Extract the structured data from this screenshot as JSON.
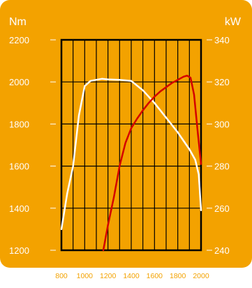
{
  "chart_data": {
    "type": "line",
    "xlabel": "",
    "x_ticks": [
      "800",
      "1000",
      "1200",
      "1400",
      "1600",
      "1800",
      "2000"
    ],
    "xlim": [
      800,
      2000
    ],
    "y_left": {
      "unit": "Nm",
      "ticks": [
        "1200",
        "1400",
        "1600",
        "1800",
        "2000",
        "2200"
      ],
      "ylim": [
        1200,
        2200
      ]
    },
    "y_right": {
      "unit": "kW",
      "ticks": [
        "240",
        "260",
        "280",
        "300",
        "320",
        "340"
      ],
      "ylim": [
        240,
        340
      ]
    },
    "grid": true,
    "series": [
      {
        "axis": "left",
        "color": "#ffffff",
        "points": [
          [
            800,
            1300
          ],
          [
            850,
            1470
          ],
          [
            900,
            1600
          ],
          [
            950,
            1840
          ],
          [
            1000,
            1980
          ],
          [
            1050,
            2005
          ],
          [
            1100,
            2010
          ],
          [
            1150,
            2015
          ],
          [
            1200,
            2012
          ],
          [
            1300,
            2010
          ],
          [
            1400,
            2005
          ],
          [
            1500,
            1960
          ],
          [
            1600,
            1900
          ],
          [
            1700,
            1830
          ],
          [
            1800,
            1760
          ],
          [
            1850,
            1720
          ],
          [
            1900,
            1680
          ],
          [
            1950,
            1630
          ],
          [
            1980,
            1560
          ],
          [
            2000,
            1390
          ]
        ]
      },
      {
        "axis": "right",
        "color": "#d40000",
        "points": [
          [
            1160,
            240
          ],
          [
            1200,
            252
          ],
          [
            1250,
            265
          ],
          [
            1300,
            280
          ],
          [
            1350,
            291
          ],
          [
            1400,
            298
          ],
          [
            1450,
            302.5
          ],
          [
            1500,
            306.5
          ],
          [
            1550,
            310
          ],
          [
            1600,
            313
          ],
          [
            1650,
            315.5
          ],
          [
            1700,
            317.5
          ],
          [
            1750,
            319.5
          ],
          [
            1800,
            321
          ],
          [
            1850,
            322.5
          ],
          [
            1880,
            323
          ],
          [
            1910,
            322
          ],
          [
            1940,
            314
          ],
          [
            1970,
            297
          ],
          [
            2000,
            281
          ]
        ]
      }
    ]
  },
  "colors": {
    "panel": "#f3a200",
    "plot_border": "#000000",
    "label_text": "#ffffff",
    "bottom_tick_text": "#f3a200"
  }
}
